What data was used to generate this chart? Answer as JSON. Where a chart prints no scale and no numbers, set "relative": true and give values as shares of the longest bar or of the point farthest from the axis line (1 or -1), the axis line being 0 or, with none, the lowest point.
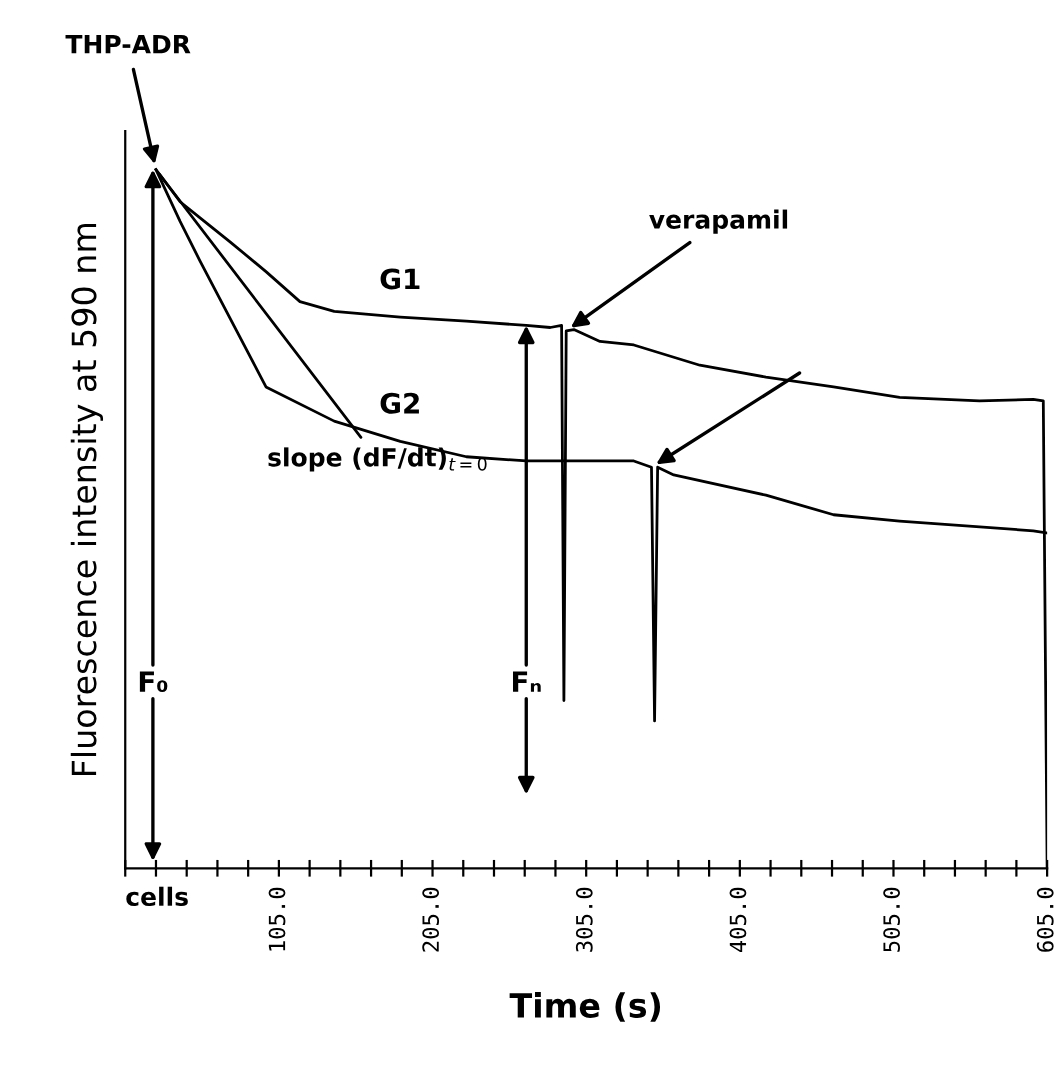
{
  "chart_data": {
    "type": "line",
    "relative": true,
    "xlabel": "Time (s)",
    "ylabel": "Fluorescence intensity at 590 nm",
    "xlim": [
      5,
      605
    ],
    "xticks": [
      {
        "value": 5,
        "label": null
      },
      {
        "value": 25,
        "label": null
      },
      {
        "value": 45,
        "label": null
      },
      {
        "value": 65,
        "label": null
      },
      {
        "value": 85,
        "label": null
      },
      {
        "value": 105,
        "label": "105.0"
      },
      {
        "value": 125,
        "label": null
      },
      {
        "value": 145,
        "label": null
      },
      {
        "value": 165,
        "label": null
      },
      {
        "value": 185,
        "label": null
      },
      {
        "value": 205,
        "label": "205.0"
      },
      {
        "value": 225,
        "label": null
      },
      {
        "value": 245,
        "label": null
      },
      {
        "value": 265,
        "label": null
      },
      {
        "value": 285,
        "label": null
      },
      {
        "value": 305,
        "label": "305.0"
      },
      {
        "value": 325,
        "label": null
      },
      {
        "value": 345,
        "label": null
      },
      {
        "value": 365,
        "label": null
      },
      {
        "value": 385,
        "label": null
      },
      {
        "value": 405,
        "label": "405.0"
      },
      {
        "value": 425,
        "label": null
      },
      {
        "value": 445,
        "label": null
      },
      {
        "value": 465,
        "label": null
      },
      {
        "value": 485,
        "label": null
      },
      {
        "value": 505,
        "label": "505.0"
      },
      {
        "value": 525,
        "label": null
      },
      {
        "value": 545,
        "label": null
      },
      {
        "value": 565,
        "label": null
      },
      {
        "value": 585,
        "label": null
      },
      {
        "value": 605,
        "label": "605.0"
      }
    ],
    "series": [
      {
        "name": "G1",
        "color": "#000000",
        "x": [
          25,
          40.7,
          53.7,
          73,
          96.6,
          118.7,
          141,
          184,
          227,
          266,
          281.6,
          289,
          290.5,
          292,
          297,
          314,
          336,
          379,
          422,
          466,
          509,
          561,
          596,
          602.5,
          605
        ],
        "values": [
          1.0,
          0.954,
          0.931,
          0.897,
          0.854,
          0.811,
          0.797,
          0.789,
          0.783,
          0.777,
          0.774,
          0.777,
          0.24,
          0.769,
          0.771,
          0.754,
          0.749,
          0.72,
          0.703,
          0.689,
          0.674,
          0.669,
          0.671,
          0.669,
          0
        ]
      },
      {
        "name": "G2",
        "color": "#000000",
        "x": [
          25,
          40.7,
          53.7,
          96.6,
          141,
          184,
          227,
          266,
          336,
          347.5,
          349.5,
          351.5,
          362,
          422,
          466,
          509,
          596,
          605
        ],
        "values": [
          1.0,
          0.926,
          0.869,
          0.689,
          0.64,
          0.611,
          0.589,
          0.583,
          0.583,
          0.574,
          0.211,
          0.574,
          0.563,
          0.534,
          0.506,
          0.497,
          0.483,
          0.48
        ]
      }
    ],
    "annotations": [
      {
        "text": "THP-ADR",
        "x": 25,
        "y": 1.0
      },
      {
        "text": "slope (dF/dt)$_{t=0}$",
        "x": 25,
        "y": 1.0
      },
      {
        "text": "verapamil",
        "x": 292,
        "y": 0.769
      },
      {
        "text": "F₀",
        "x": 23,
        "y": 1.0
      },
      {
        "text": "Fₙ",
        "x": 266,
        "y": 0.777
      },
      "cells"
    ]
  }
}
